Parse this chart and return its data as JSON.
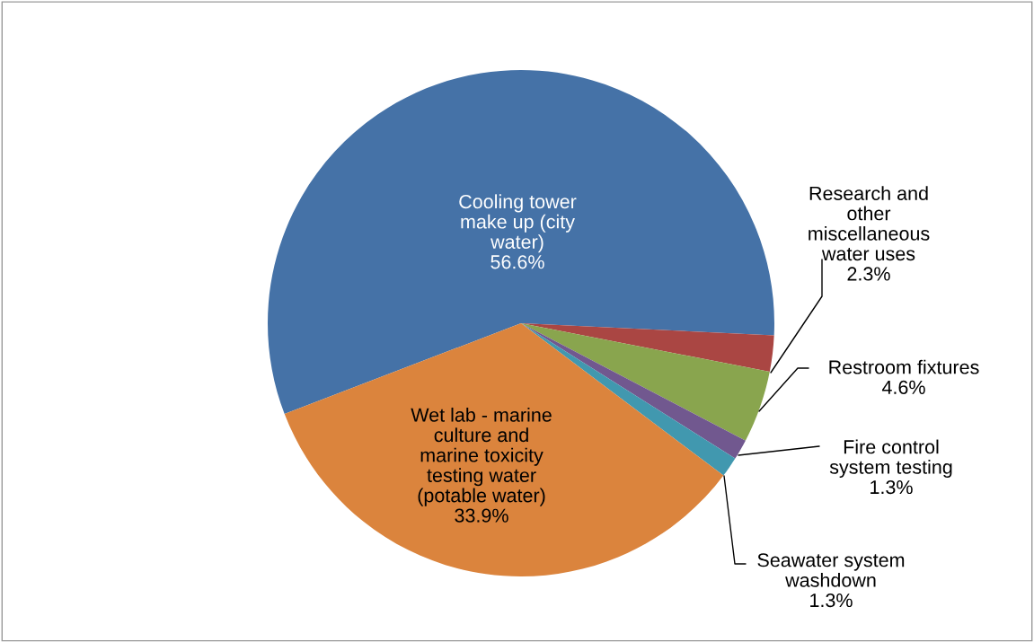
{
  "chart_data": {
    "type": "pie",
    "categories": [
      "Cooling tower make up (city water)",
      "Research and other miscellaneous water uses",
      "Restroom fixtures",
      "Fire control system testing",
      "Seawater system washdown",
      "Wet lab - marine culture and marine toxicity testing water (potable water)"
    ],
    "values": [
      56.6,
      2.3,
      4.6,
      1.3,
      1.3,
      33.9
    ],
    "value_labels": [
      "56.6%",
      "2.3%",
      "4.6%",
      "1.3%",
      "1.3%",
      "33.9%"
    ],
    "colors": [
      "#4572a7",
      "#aa4643",
      "#89a54e",
      "#71588f",
      "#4198af",
      "#db843d"
    ],
    "legend": false
  }
}
